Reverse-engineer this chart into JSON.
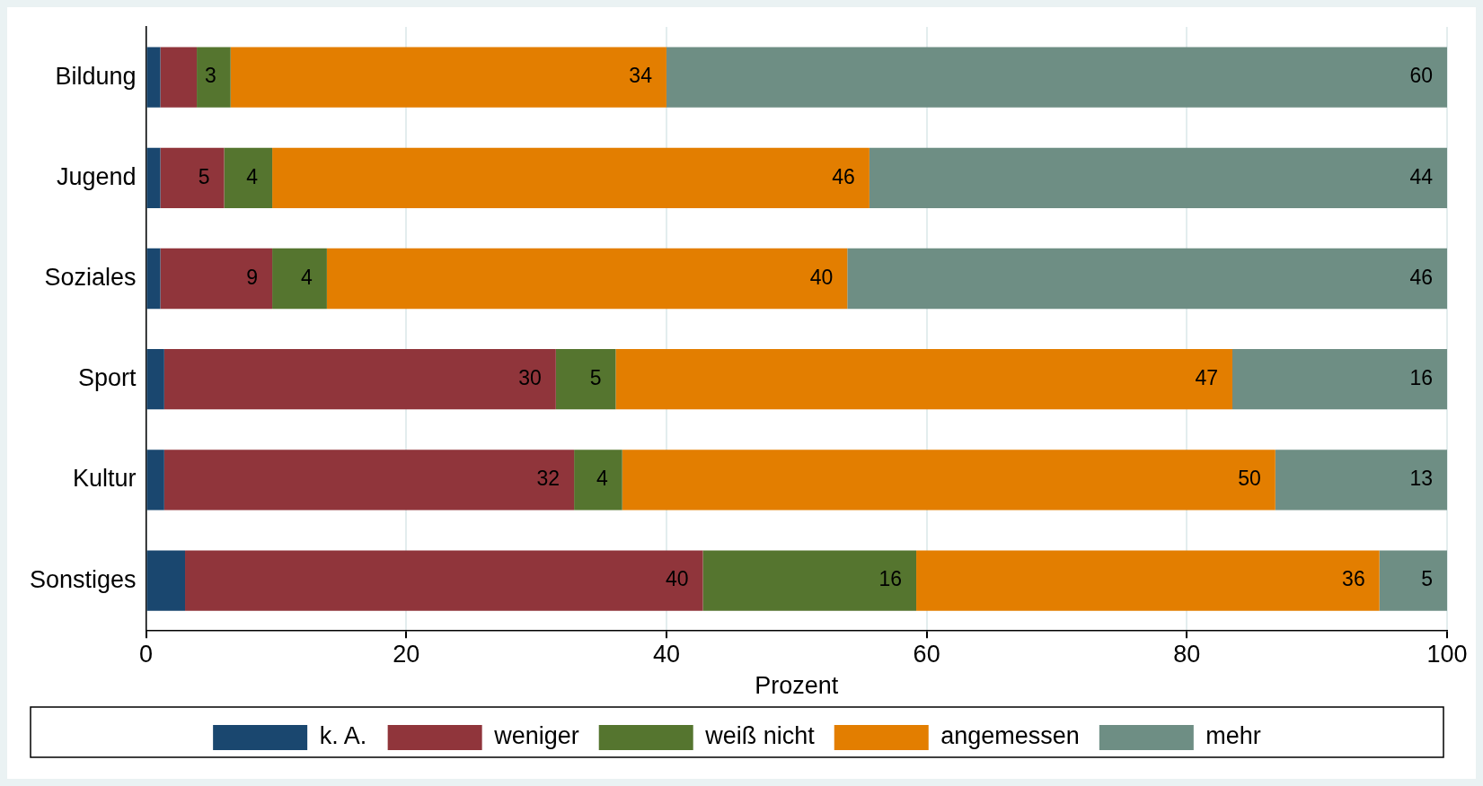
{
  "chart_data": {
    "type": "bar",
    "orientation": "horizontal",
    "stacked": true,
    "xlabel": "Prozent",
    "categories": [
      "Bildung",
      "Jugend",
      "Soziales",
      "Sport",
      "Kultur",
      "Sonstiges"
    ],
    "series": [
      {
        "name": "k. A.",
        "color": "#1a476f",
        "values": [
          1.1,
          1.1,
          1.1,
          1.4,
          1.4,
          3.0
        ],
        "value_labels": [
          null,
          null,
          null,
          null,
          null,
          null
        ]
      },
      {
        "name": "weniger",
        "color": "#90353b",
        "values": [
          2.8,
          4.9,
          8.6,
          30.1,
          31.5,
          39.8
        ],
        "value_labels": [
          null,
          "5",
          "9",
          "30",
          "32",
          "40"
        ]
      },
      {
        "name": "weiß nicht",
        "color": "#55752f",
        "values": [
          2.6,
          3.7,
          4.2,
          4.6,
          3.7,
          16.4
        ],
        "value_labels": [
          "3",
          "4",
          "4",
          "5",
          "4",
          "16"
        ]
      },
      {
        "name": "angemessen",
        "color": "#e37e00",
        "values": [
          33.5,
          45.9,
          40.0,
          47.4,
          50.2,
          35.6
        ],
        "value_labels": [
          "34",
          "46",
          "40",
          "47",
          "50",
          "36"
        ]
      },
      {
        "name": "mehr",
        "color": "#6e8e84",
        "values": [
          60.0,
          44.4,
          46.1,
          16.5,
          13.2,
          5.2
        ],
        "value_labels": [
          "60",
          "44",
          "46",
          "16",
          "13",
          "5"
        ]
      }
    ],
    "xlim": [
      0,
      100
    ],
    "xticks": [
      0,
      20,
      40,
      60,
      80,
      100
    ],
    "grid": "x",
    "legend": "bottom"
  }
}
